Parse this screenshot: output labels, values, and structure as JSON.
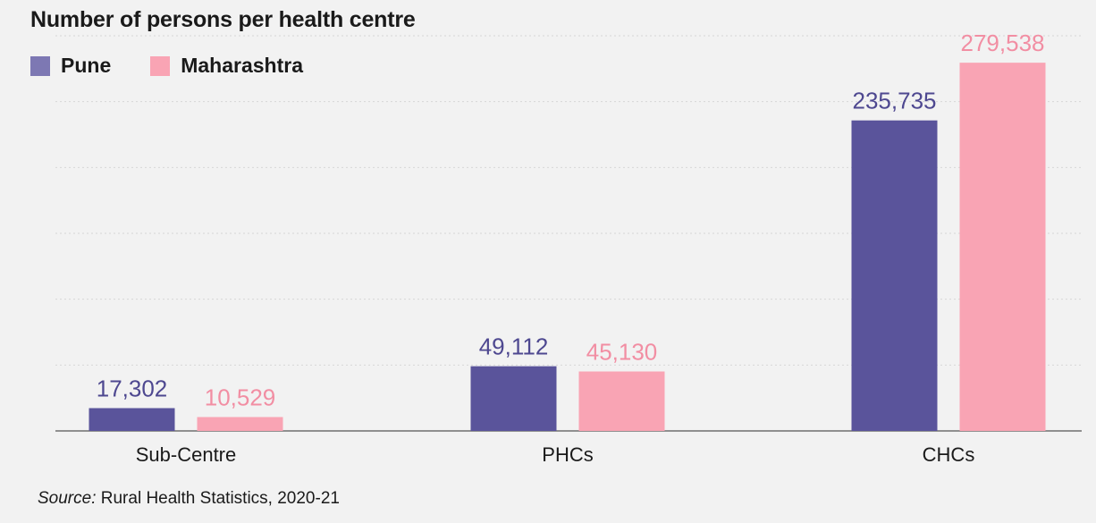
{
  "chart_data": {
    "type": "bar",
    "title": "Number of persons per health centre",
    "categories": [
      "Sub-Centre",
      "PHCs",
      "CHCs"
    ],
    "series": [
      {
        "name": "Pune",
        "values": [
          17302,
          49112,
          235735
        ],
        "labels": [
          "17,302",
          "49,112",
          "235,735"
        ],
        "color": "#5a549b",
        "label_color": "#4e4890",
        "legend_color": "#7d78b3"
      },
      {
        "name": "Maharashtra",
        "values": [
          10529,
          45130,
          279538
        ],
        "labels": [
          "10,529",
          "45,130",
          "279,538"
        ],
        "color": "#f9a4b4",
        "label_color": "#f28ea3",
        "legend_color": "#f9a4b4"
      }
    ],
    "ylim": [
      0,
      300000
    ],
    "grid": true,
    "legend_position": "top-left",
    "xlabel": "",
    "ylabel": ""
  },
  "source": {
    "prefix": "Source:",
    "text": " Rural Health Statistics, 2020-21"
  }
}
